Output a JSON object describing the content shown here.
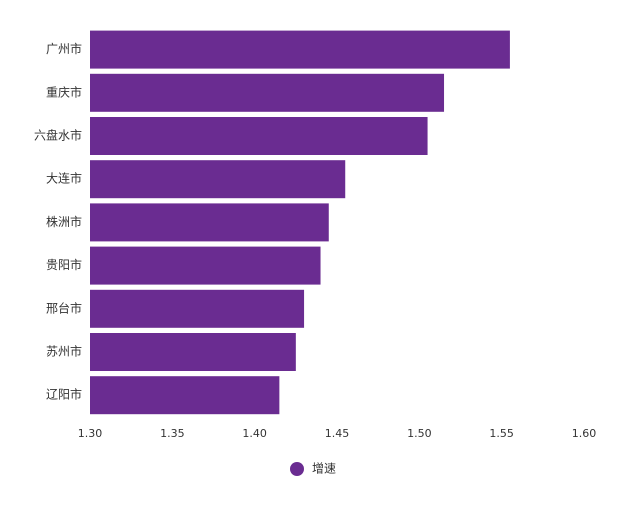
{
  "chart_data": {
    "type": "bar",
    "orientation": "horizontal",
    "categories": [
      "广州市",
      "重庆市",
      "六盘水市",
      "大连市",
      "株洲市",
      "贵阳市",
      "邢台市",
      "苏州市",
      "辽阳市"
    ],
    "series": [
      {
        "name": "增速",
        "values": [
          1.555,
          1.515,
          1.505,
          1.455,
          1.445,
          1.44,
          1.43,
          1.425,
          1.415
        ]
      }
    ],
    "xlim": [
      1.3,
      1.6
    ],
    "xticks": [
      "1.30",
      "1.35",
      "1.40",
      "1.45",
      "1.50",
      "1.55",
      "1.60"
    ],
    "grid": false,
    "legend_position": "bottom",
    "colors": {
      "bar": "#6a2c91"
    }
  }
}
